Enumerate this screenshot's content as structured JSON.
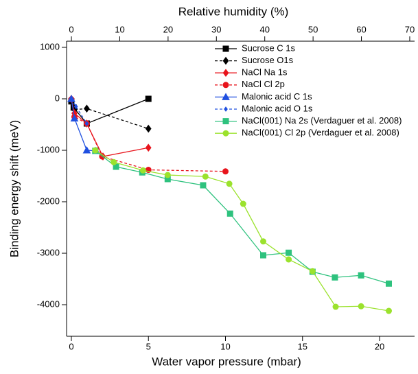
{
  "chart_data": {
    "type": "line",
    "xlabel": "Water vapor pressure (mbar)",
    "x2label": "Relative humidity (%)",
    "ylabel": "Binding energy shift (meV)",
    "xlim": [
      -0.31,
      22.27
    ],
    "xticks": [
      0,
      5,
      10,
      15,
      20
    ],
    "x2lim": [
      -1,
      71
    ],
    "x2ticks": [
      0,
      10,
      20,
      30,
      40,
      50,
      60,
      70
    ],
    "ylim": [
      -4613,
      1120
    ],
    "yticks": [
      1000,
      0,
      -1000,
      -2000,
      -3000,
      -4000
    ],
    "series": [
      {
        "name": "Sucrose C 1s",
        "color": "#000000",
        "marker": "square",
        "dash": false,
        "x": [
          0,
          0.15,
          1,
          5
        ],
        "values": [
          -50,
          -170,
          -480,
          0
        ]
      },
      {
        "name": "Sucrose O1s",
        "color": "#000000",
        "marker": "diamond",
        "dash": true,
        "x": [
          0,
          0.2,
          1,
          5
        ],
        "values": [
          -40,
          -210,
          -190,
          -580
        ]
      },
      {
        "name": "NaCl Na 1s",
        "color": "#e8141c",
        "marker": "diamond",
        "dash": false,
        "x": [
          0,
          0.2,
          1,
          2.05,
          5
        ],
        "values": [
          0,
          -280,
          -480,
          -1120,
          -950
        ]
      },
      {
        "name": "NaCl Cl 2p",
        "color": "#e8141c",
        "marker": "circle",
        "dash": true,
        "x": [
          0,
          0.2,
          1,
          2,
          5,
          10
        ],
        "values": [
          -10,
          -350,
          -480,
          -1120,
          -1380,
          -1410
        ]
      },
      {
        "name": "Malonic acid C 1s",
        "color": "#1f4fe0",
        "marker": "triangle",
        "dash": false,
        "x": [
          0,
          0.2,
          1,
          1.6
        ],
        "values": [
          0,
          -380,
          -1000,
          -1010
        ]
      },
      {
        "name": "Malonic acid O 1s",
        "color": "#1f4fe0",
        "marker": "small-diamond",
        "dash": true,
        "x": [
          0,
          0.3,
          1
        ],
        "values": [
          0,
          -150,
          -480
        ]
      },
      {
        "name": "NaCl(001) Na 2s (Verdaguer et al. 2008)",
        "color": "#2ec27e",
        "marker": "square",
        "dash": false,
        "x": [
          1.55,
          2.9,
          4.6,
          6.25,
          8.55,
          10.3,
          12.45,
          14.1,
          15.65,
          17.1,
          18.8,
          20.6
        ],
        "values": [
          -1010,
          -1320,
          -1430,
          -1560,
          -1680,
          -2230,
          -3040,
          -2990,
          -3360,
          -3470,
          -3430,
          -3590
        ]
      },
      {
        "name": "NaCl(001) Cl 2p (Verdaguer et al. 2008)",
        "color": "#9be22d",
        "marker": "circle",
        "dash": false,
        "x": [
          1.55,
          2.75,
          4.65,
          6.25,
          8.7,
          10.25,
          11.15,
          12.45,
          14.1,
          15.65,
          17.15,
          18.8,
          20.6
        ],
        "values": [
          -1000,
          -1230,
          -1390,
          -1480,
          -1510,
          -1650,
          -2040,
          -2770,
          -3120,
          -3350,
          -4040,
          -4030,
          -4120
        ]
      }
    ]
  }
}
